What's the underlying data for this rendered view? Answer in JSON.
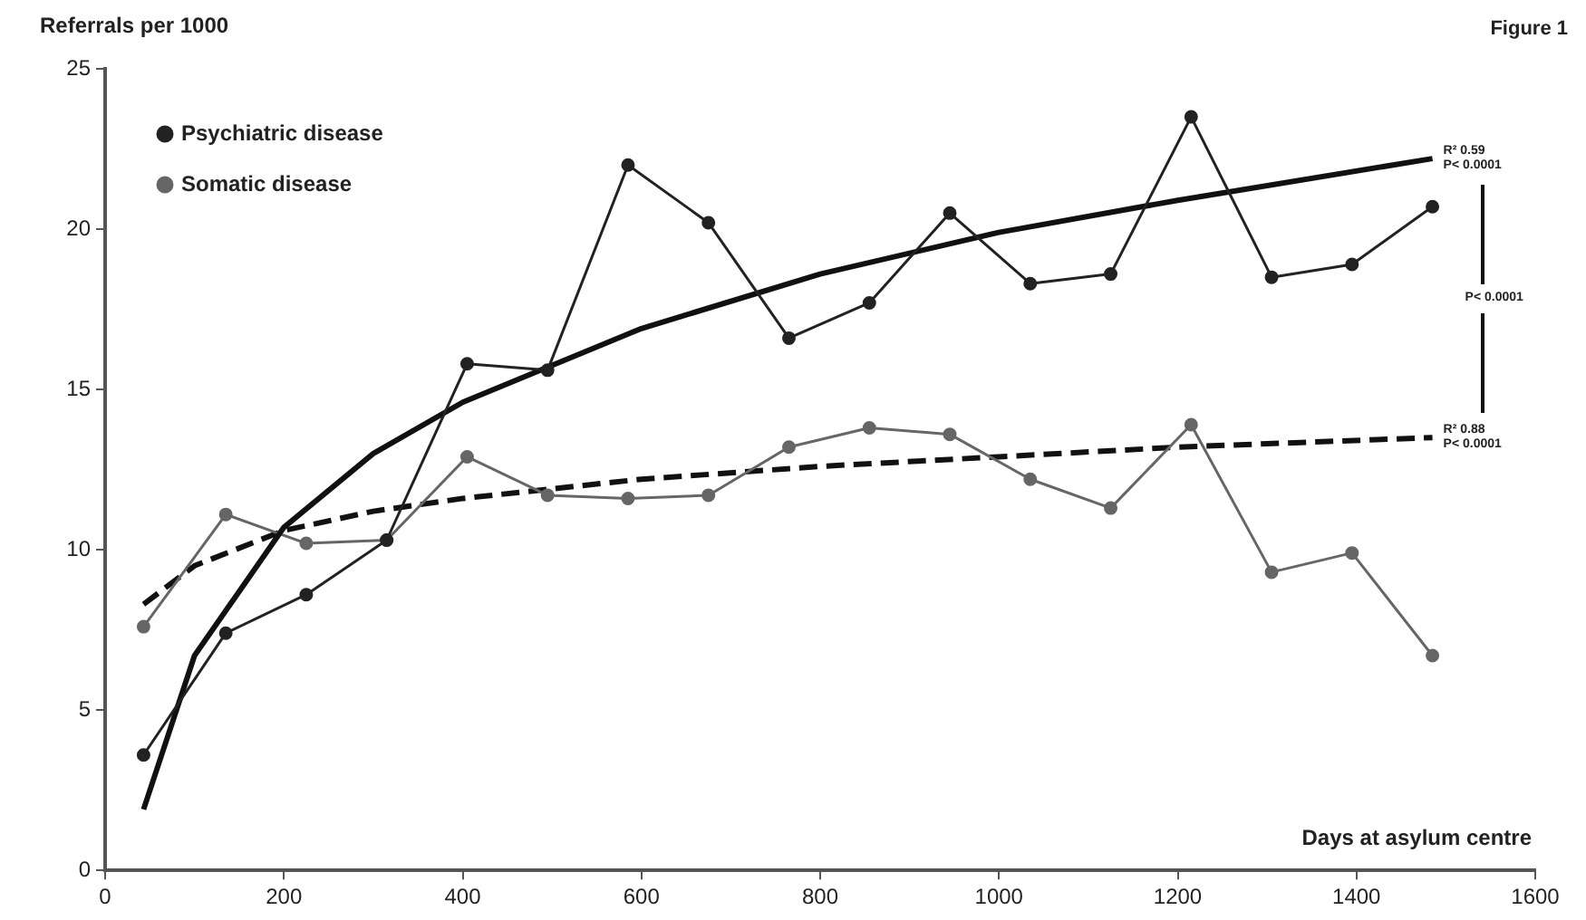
{
  "chart_data": {
    "type": "line",
    "ylabel": "Referrals per 1000",
    "xlabel": "Days at asylum centre",
    "annotations": [
      "Figure 1",
      "R² 0.59",
      "P< 0.0001",
      "P< 0.0001",
      "R² 0.88",
      "P< 0.0001"
    ],
    "xlim": [
      0,
      1600
    ],
    "xticks": [
      0,
      200,
      400,
      600,
      800,
      1000,
      1200,
      1400,
      1600
    ],
    "ylim": [
      0,
      25
    ],
    "yticks": [
      0,
      5,
      10,
      15,
      20,
      25
    ],
    "grid": false,
    "legend": "top left",
    "series": [
      {
        "name": "Psychiatric disease",
        "color": "#222222",
        "marker": "circle",
        "line_style": "solid",
        "x": [
          43,
          135,
          225,
          315,
          405,
          495,
          585,
          675,
          765,
          855,
          945,
          1035,
          1125,
          1215,
          1305,
          1395,
          1485
        ],
        "values": [
          3.6,
          7.4,
          8.6,
          10.3,
          15.8,
          15.6,
          22.0,
          20.2,
          16.6,
          17.7,
          20.5,
          18.3,
          18.6,
          23.5,
          18.5,
          18.9,
          20.7
        ]
      },
      {
        "color": "#111111",
        "marker": "none",
        "line_style": "solid",
        "x": [
          43,
          100,
          200,
          300,
          400,
          600,
          800,
          1000,
          1200,
          1485
        ],
        "values": [
          1.9,
          6.7,
          10.7,
          13.0,
          14.6,
          16.9,
          18.6,
          19.9,
          20.9,
          22.2
        ]
      },
      {
        "name": "Somatic disease",
        "color": "#666666",
        "marker": "circle",
        "line_style": "solid",
        "x": [
          43,
          135,
          225,
          315,
          405,
          495,
          585,
          675,
          765,
          855,
          945,
          1035,
          1125,
          1215,
          1305,
          1395,
          1485
        ],
        "values": [
          7.6,
          11.1,
          10.2,
          10.3,
          12.9,
          11.7,
          11.6,
          11.7,
          13.2,
          13.8,
          13.6,
          12.2,
          11.3,
          13.9,
          9.3,
          9.9,
          6.7
        ]
      },
      {
        "color": "#111111",
        "marker": "none",
        "line_style": "dashed",
        "x": [
          43,
          100,
          200,
          300,
          400,
          600,
          800,
          1000,
          1200,
          1485
        ],
        "values": [
          8.3,
          9.5,
          10.6,
          11.2,
          11.6,
          12.2,
          12.6,
          12.9,
          13.2,
          13.5
        ]
      }
    ]
  }
}
